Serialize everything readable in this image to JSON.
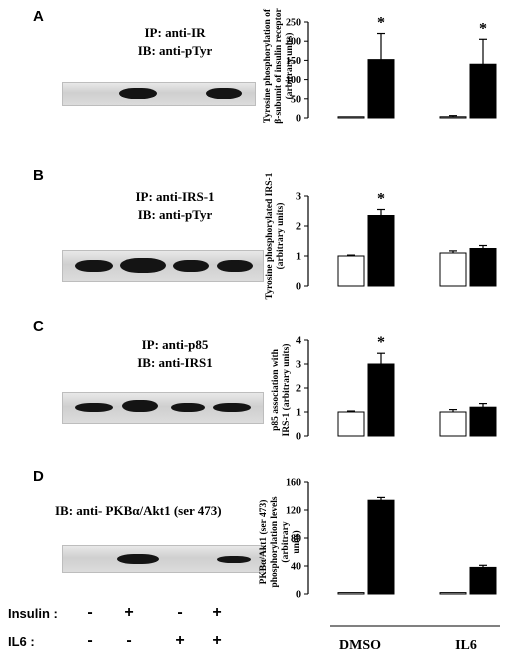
{
  "panels": [
    {
      "letter": "A",
      "ip_label": "IP: anti-IR",
      "ib_label": "IB: anti-pTyr",
      "ylabel_lines": [
        "Tyrosine phosphorylation of",
        "β-subunit of insulin receptor",
        "(arbitrary units)"
      ]
    },
    {
      "letter": "B",
      "ip_label": "IP: anti-IRS-1",
      "ib_label": "IB: anti-pTyr",
      "ylabel_lines": [
        "Tyrosine phosphorylated IRS-1",
        "(arbitrary units)"
      ]
    },
    {
      "letter": "C",
      "ip_label": "IP: anti-p85",
      "ib_label": "IB: anti-IRS1",
      "ylabel_lines": [
        "p85 association with",
        "IRS-1 (arbitrary units)"
      ]
    },
    {
      "letter": "D",
      "ip_label": "IB: anti- PKBα/Akt1 (ser 473)",
      "ib_label": "",
      "ylabel_lines": [
        "PKBα/Akt1 (ser 473)",
        "phosphorylation levels",
        "(arbitrary",
        "units)"
      ]
    }
  ],
  "conditions": {
    "insulin_label": "Insulin :",
    "il6_label": "IL6 :",
    "insulin": [
      "-",
      "+",
      "-",
      "+"
    ],
    "il6": [
      "-",
      "-",
      "+",
      "+"
    ]
  },
  "groups": [
    "DMSO",
    "IL6"
  ],
  "significance_marker": "*",
  "chart_data": [
    {
      "type": "bar",
      "panel": "A",
      "categories": [
        "DMSO -",
        "DMSO +",
        "IL6 -",
        "IL6 +"
      ],
      "values": [
        2,
        152,
        3,
        140
      ],
      "errors": [
        0,
        68,
        3,
        65
      ],
      "fills": [
        "white",
        "black",
        "white",
        "black"
      ],
      "significant": [
        false,
        true,
        false,
        true
      ],
      "ylim": [
        0,
        250
      ],
      "yticks": [
        0,
        50,
        100,
        150,
        200,
        250
      ]
    },
    {
      "type": "bar",
      "panel": "B",
      "categories": [
        "DMSO -",
        "DMSO +",
        "IL6 -",
        "IL6 +"
      ],
      "values": [
        1.0,
        2.35,
        1.1,
        1.25
      ],
      "errors": [
        0.03,
        0.2,
        0.07,
        0.1
      ],
      "fills": [
        "white",
        "black",
        "white",
        "black"
      ],
      "significant": [
        false,
        true,
        false,
        false
      ],
      "ylim": [
        0,
        3
      ],
      "yticks": [
        0,
        1,
        2,
        3
      ]
    },
    {
      "type": "bar",
      "panel": "C",
      "categories": [
        "DMSO -",
        "DMSO +",
        "IL6 -",
        "IL6 +"
      ],
      "values": [
        1.0,
        3.0,
        1.0,
        1.2
      ],
      "errors": [
        0.04,
        0.45,
        0.1,
        0.15
      ],
      "fills": [
        "white",
        "black",
        "white",
        "black"
      ],
      "significant": [
        false,
        true,
        false,
        false
      ],
      "ylim": [
        0,
        4
      ],
      "yticks": [
        0,
        1,
        2,
        3,
        4
      ]
    },
    {
      "type": "bar",
      "panel": "D",
      "categories": [
        "DMSO -",
        "DMSO +",
        "IL6 -",
        "IL6 +"
      ],
      "values": [
        2,
        134,
        2,
        38
      ],
      "errors": [
        0,
        4,
        0,
        3
      ],
      "fills": [
        "white",
        "black",
        "white",
        "black"
      ],
      "significant": [
        false,
        false,
        false,
        false
      ],
      "ylim": [
        0,
        160
      ],
      "yticks": [
        0,
        40,
        80,
        120,
        160
      ]
    }
  ]
}
